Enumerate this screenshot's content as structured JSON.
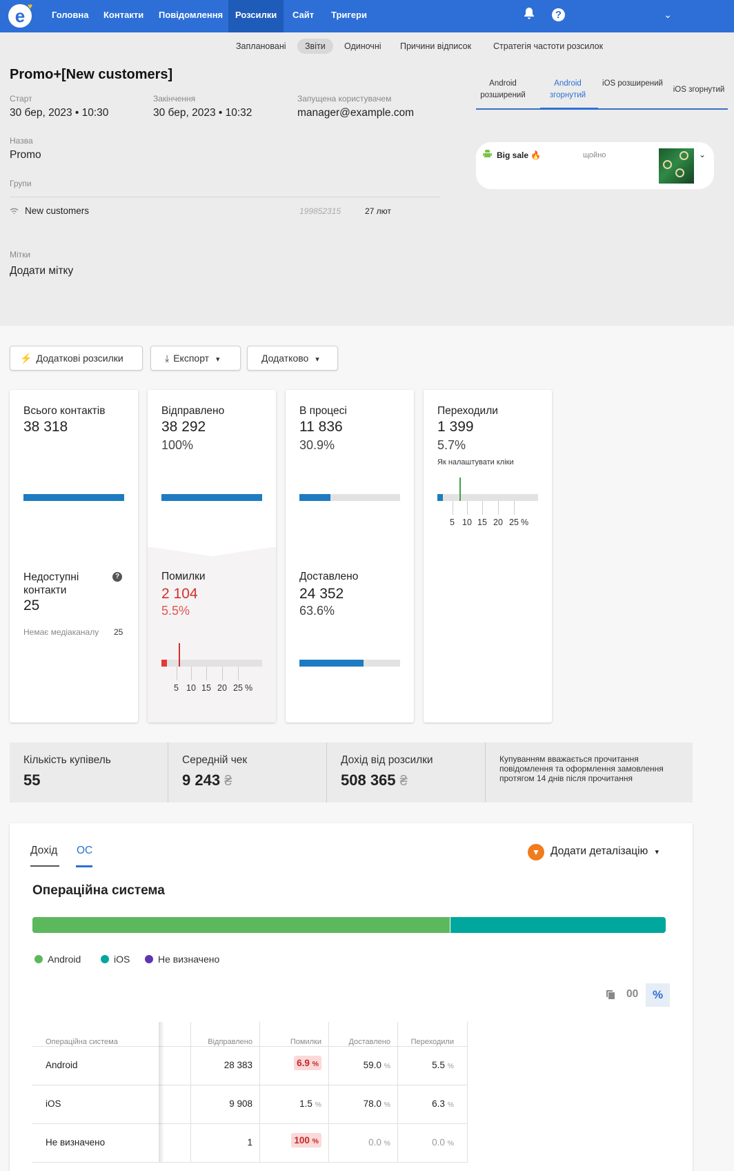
{
  "nav": {
    "items": [
      "Головна",
      "Контакти",
      "Повідомлення",
      "Розсилки",
      "Сайт",
      "Тригери"
    ],
    "active": "Розсилки"
  },
  "subtabs": [
    "Заплановані",
    "Звіти",
    "Одиночні",
    "Причини відписок",
    "Стратегія частоти розсилок"
  ],
  "campaign": {
    "title": "Promo+[New customers]",
    "start_label": "Старт",
    "start_value": "30 бер, 2023 • 10:30",
    "end_label": "Закінчення",
    "end_value": "30 бер, 2023 • 10:32",
    "user_label": "Запущена користувачем",
    "user_value": "manager@example.com",
    "name_label": "Назва",
    "name_value": "Promo",
    "groups_label": "Групи",
    "group_name": "New customers",
    "group_id": "199852315",
    "group_date": "27 лют",
    "tags_label": "Мітки",
    "tags_value": "Додати мітку"
  },
  "preview": {
    "tabs": [
      "Android розширений",
      "Android згорнутий",
      "iOS розширений",
      "iOS згорнутий"
    ],
    "title": "Big sale 🔥",
    "time": "щойно"
  },
  "buttons": {
    "extra": "Додаткові розсилки",
    "export": "Експорт",
    "more": "Додатково"
  },
  "stats": {
    "total": {
      "title": "Всього контактів",
      "value": "38 318",
      "fill": 1.0
    },
    "unavailable": {
      "title": "Недоступні контакти",
      "value": "25",
      "note": "Немає медіаканалу",
      "note_value": "25"
    },
    "sent": {
      "title": "Відправлено",
      "value": "38 292",
      "pct": "100%",
      "fill": 1.0
    },
    "errors": {
      "title": "Помилки",
      "value": "2 104",
      "pct": "5.5%",
      "fill": 0.055
    },
    "processing": {
      "title": "В процесі",
      "value": "11 836",
      "pct": "30.9%",
      "fill": 0.309
    },
    "delivered": {
      "title": "Доставлено",
      "value": "24 352",
      "pct": "63.6%",
      "fill": 0.636
    },
    "clicks": {
      "title": "Переходили",
      "value": "1 399",
      "pct": "5.7%",
      "hint": "Як налаштувати кліки",
      "fill": 0.057
    },
    "scale": [
      "5",
      "10",
      "15",
      "20",
      "25",
      "%"
    ]
  },
  "purchases": {
    "count_label": "Кількість купівель",
    "count_value": "55",
    "avg_label": "Середній чек",
    "avg_value": "9 243",
    "revenue_label": "Дохід від розсилки",
    "revenue_value": "508 365",
    "currency": "₴",
    "note": "Купуванням вважається прочитання повідомлення та оформлення замовлення протягом 14 днів після прочитання"
  },
  "report": {
    "tabs": [
      "Дохід",
      "ОС"
    ],
    "active_tab": "ОС",
    "add_detail": "Додати деталізацію",
    "section_title": "Операційна система",
    "bar_android_fraction": 0.66,
    "legend": [
      {
        "name": "Android",
        "color": "#5cb85c"
      },
      {
        "name": "iOS",
        "color": "#00a79d"
      },
      {
        "name": "Не визначено",
        "color": "#5e35b1"
      }
    ],
    "format_num": "00",
    "format_pct": "%",
    "table": {
      "headers": [
        "Операційна система",
        "Відправлено",
        "Помилки",
        "Доставлено",
        "Переходили"
      ],
      "rows": [
        {
          "os": "Android",
          "sent": "28 383",
          "errors": "6.9",
          "delivered": "59.0",
          "clicks": "5.5"
        },
        {
          "os": "iOS",
          "sent": "9 908",
          "errors": "1.5",
          "delivered": "78.0",
          "clicks": "6.3"
        },
        {
          "os": "Не визначено",
          "sent": "1",
          "errors": "100",
          "delivered": "0.0",
          "clicks": "0.0"
        }
      ],
      "pct_sign": "%"
    }
  }
}
